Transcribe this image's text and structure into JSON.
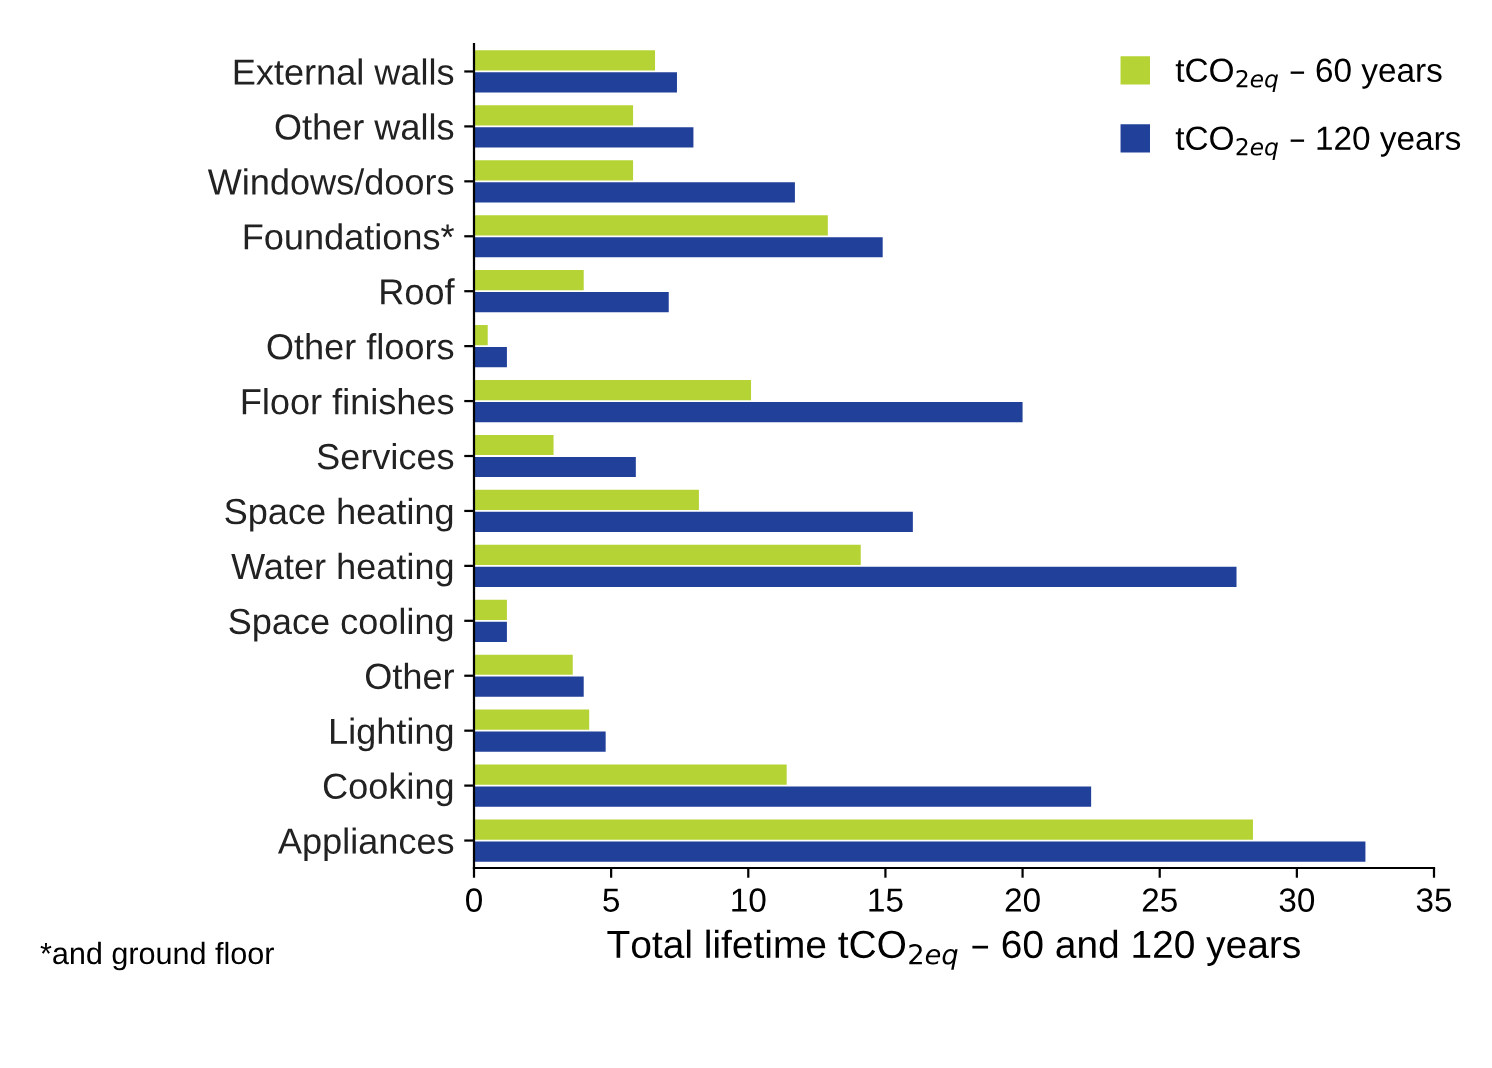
{
  "chart_data": {
    "type": "bar",
    "orientation": "horizontal",
    "categories": [
      "External walls",
      "Other walls",
      "Windows/doors",
      "Foundations*",
      "Roof",
      "Other floors",
      "Floor finishes",
      "Services",
      "Space heating",
      "Water heating",
      "Space cooling",
      "Other",
      "Lighting",
      "Cooking",
      "Appliances"
    ],
    "series": [
      {
        "name": "tCO$_{2eq}$ – 60 years",
        "color": "#b5d334",
        "values": [
          6.6,
          5.8,
          5.8,
          12.9,
          4.0,
          0.5,
          10.1,
          2.9,
          8.2,
          14.1,
          1.2,
          3.6,
          4.2,
          11.4,
          28.4
        ]
      },
      {
        "name": "tCO$_{2eq}$ – 120 years",
        "color": "#21409a",
        "values": [
          7.4,
          8.0,
          11.7,
          14.9,
          7.1,
          1.2,
          20.0,
          5.9,
          16.0,
          27.8,
          1.2,
          4.0,
          4.8,
          22.5,
          32.5
        ]
      }
    ],
    "xlabel": "Total lifetime tCO$_{2eq}$ – 60 and 120 years",
    "xlim": [
      0,
      35
    ],
    "xticks": [
      0,
      5,
      10,
      15,
      20,
      25,
      30,
      35
    ],
    "annotations": [
      "*and ground floor"
    ],
    "legend": "top right",
    "grid": false
  }
}
